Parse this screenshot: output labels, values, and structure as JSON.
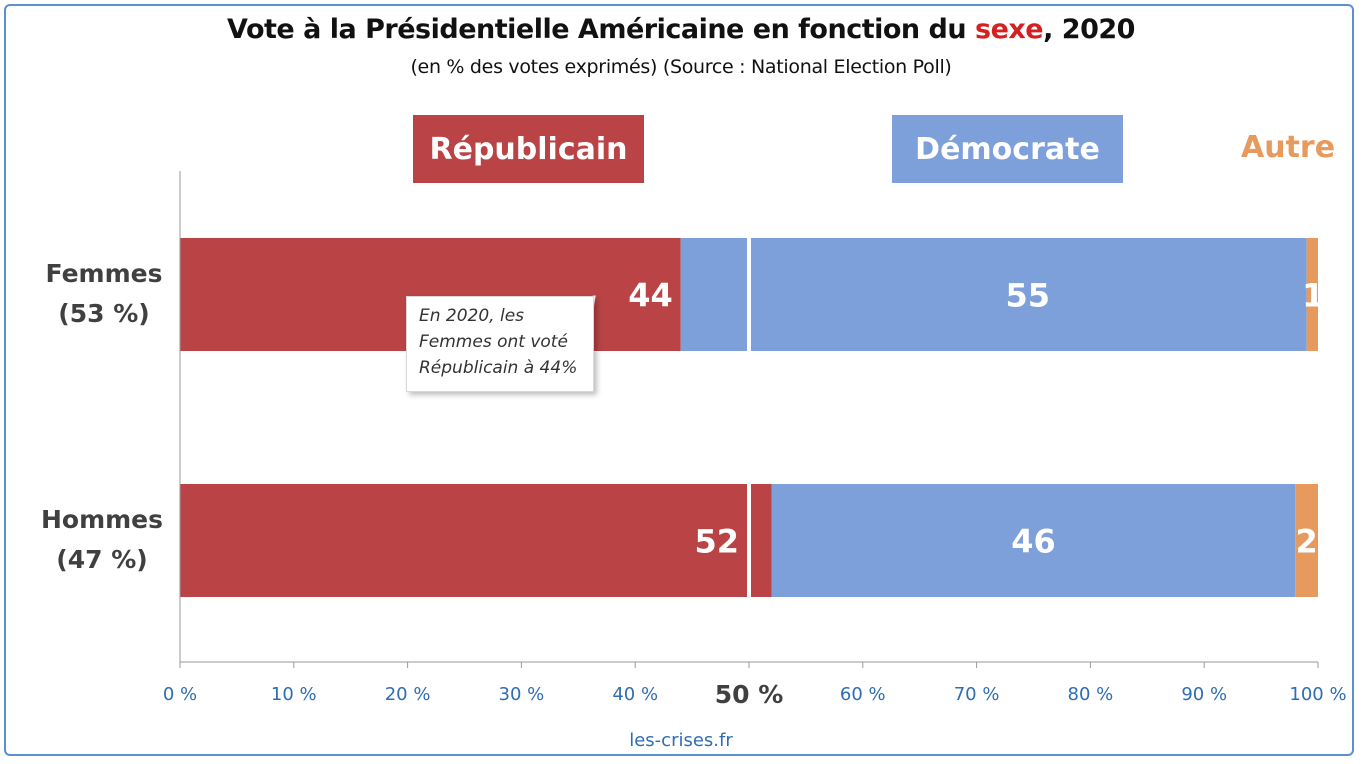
{
  "title": {
    "prefix": "Vote à la Présidentielle Américaine en fonction du ",
    "highlight": "sexe",
    "suffix": ", 2020"
  },
  "subtitle": "(en % des votes exprimés) (Source : National Election Poll)",
  "legend": {
    "republicain": "Républicain",
    "democrate": "Démocrate",
    "autre": "Autre"
  },
  "rows": {
    "femmes": {
      "line1": "Femmes",
      "line2": "(53 %)"
    },
    "hommes": {
      "line1": "Hommes",
      "line2": "(47 %)"
    }
  },
  "callout": {
    "line1": "En 2020, les",
    "line2": "Femmes ont voté",
    "line3": "Républicain à 44%"
  },
  "footer": "les-crises.fr",
  "colors": {
    "republicain": "#b94345",
    "democrate": "#7da0db",
    "autre": "#e69a5d",
    "axis_tick_label": "#2f6db3",
    "frame": "#5b8fd4"
  },
  "chart_data": {
    "type": "bar",
    "orientation": "horizontal",
    "stacked": true,
    "categories": [
      "Femmes (53 %)",
      "Hommes (47 %)"
    ],
    "series": [
      {
        "name": "Républicain",
        "values": [
          44,
          52
        ]
      },
      {
        "name": "Démocrate",
        "values": [
          55,
          46
        ]
      },
      {
        "name": "Autre",
        "values": [
          1,
          2
        ]
      }
    ],
    "xlim": [
      0,
      100
    ],
    "x_ticks": [
      "0 %",
      "10 %",
      "20 %",
      "30 %",
      "40 %",
      "50 %",
      "60 %",
      "70 %",
      "80 %",
      "90 %",
      "100 %"
    ],
    "reference_line": 50,
    "grid": false,
    "legend_position": "top"
  }
}
